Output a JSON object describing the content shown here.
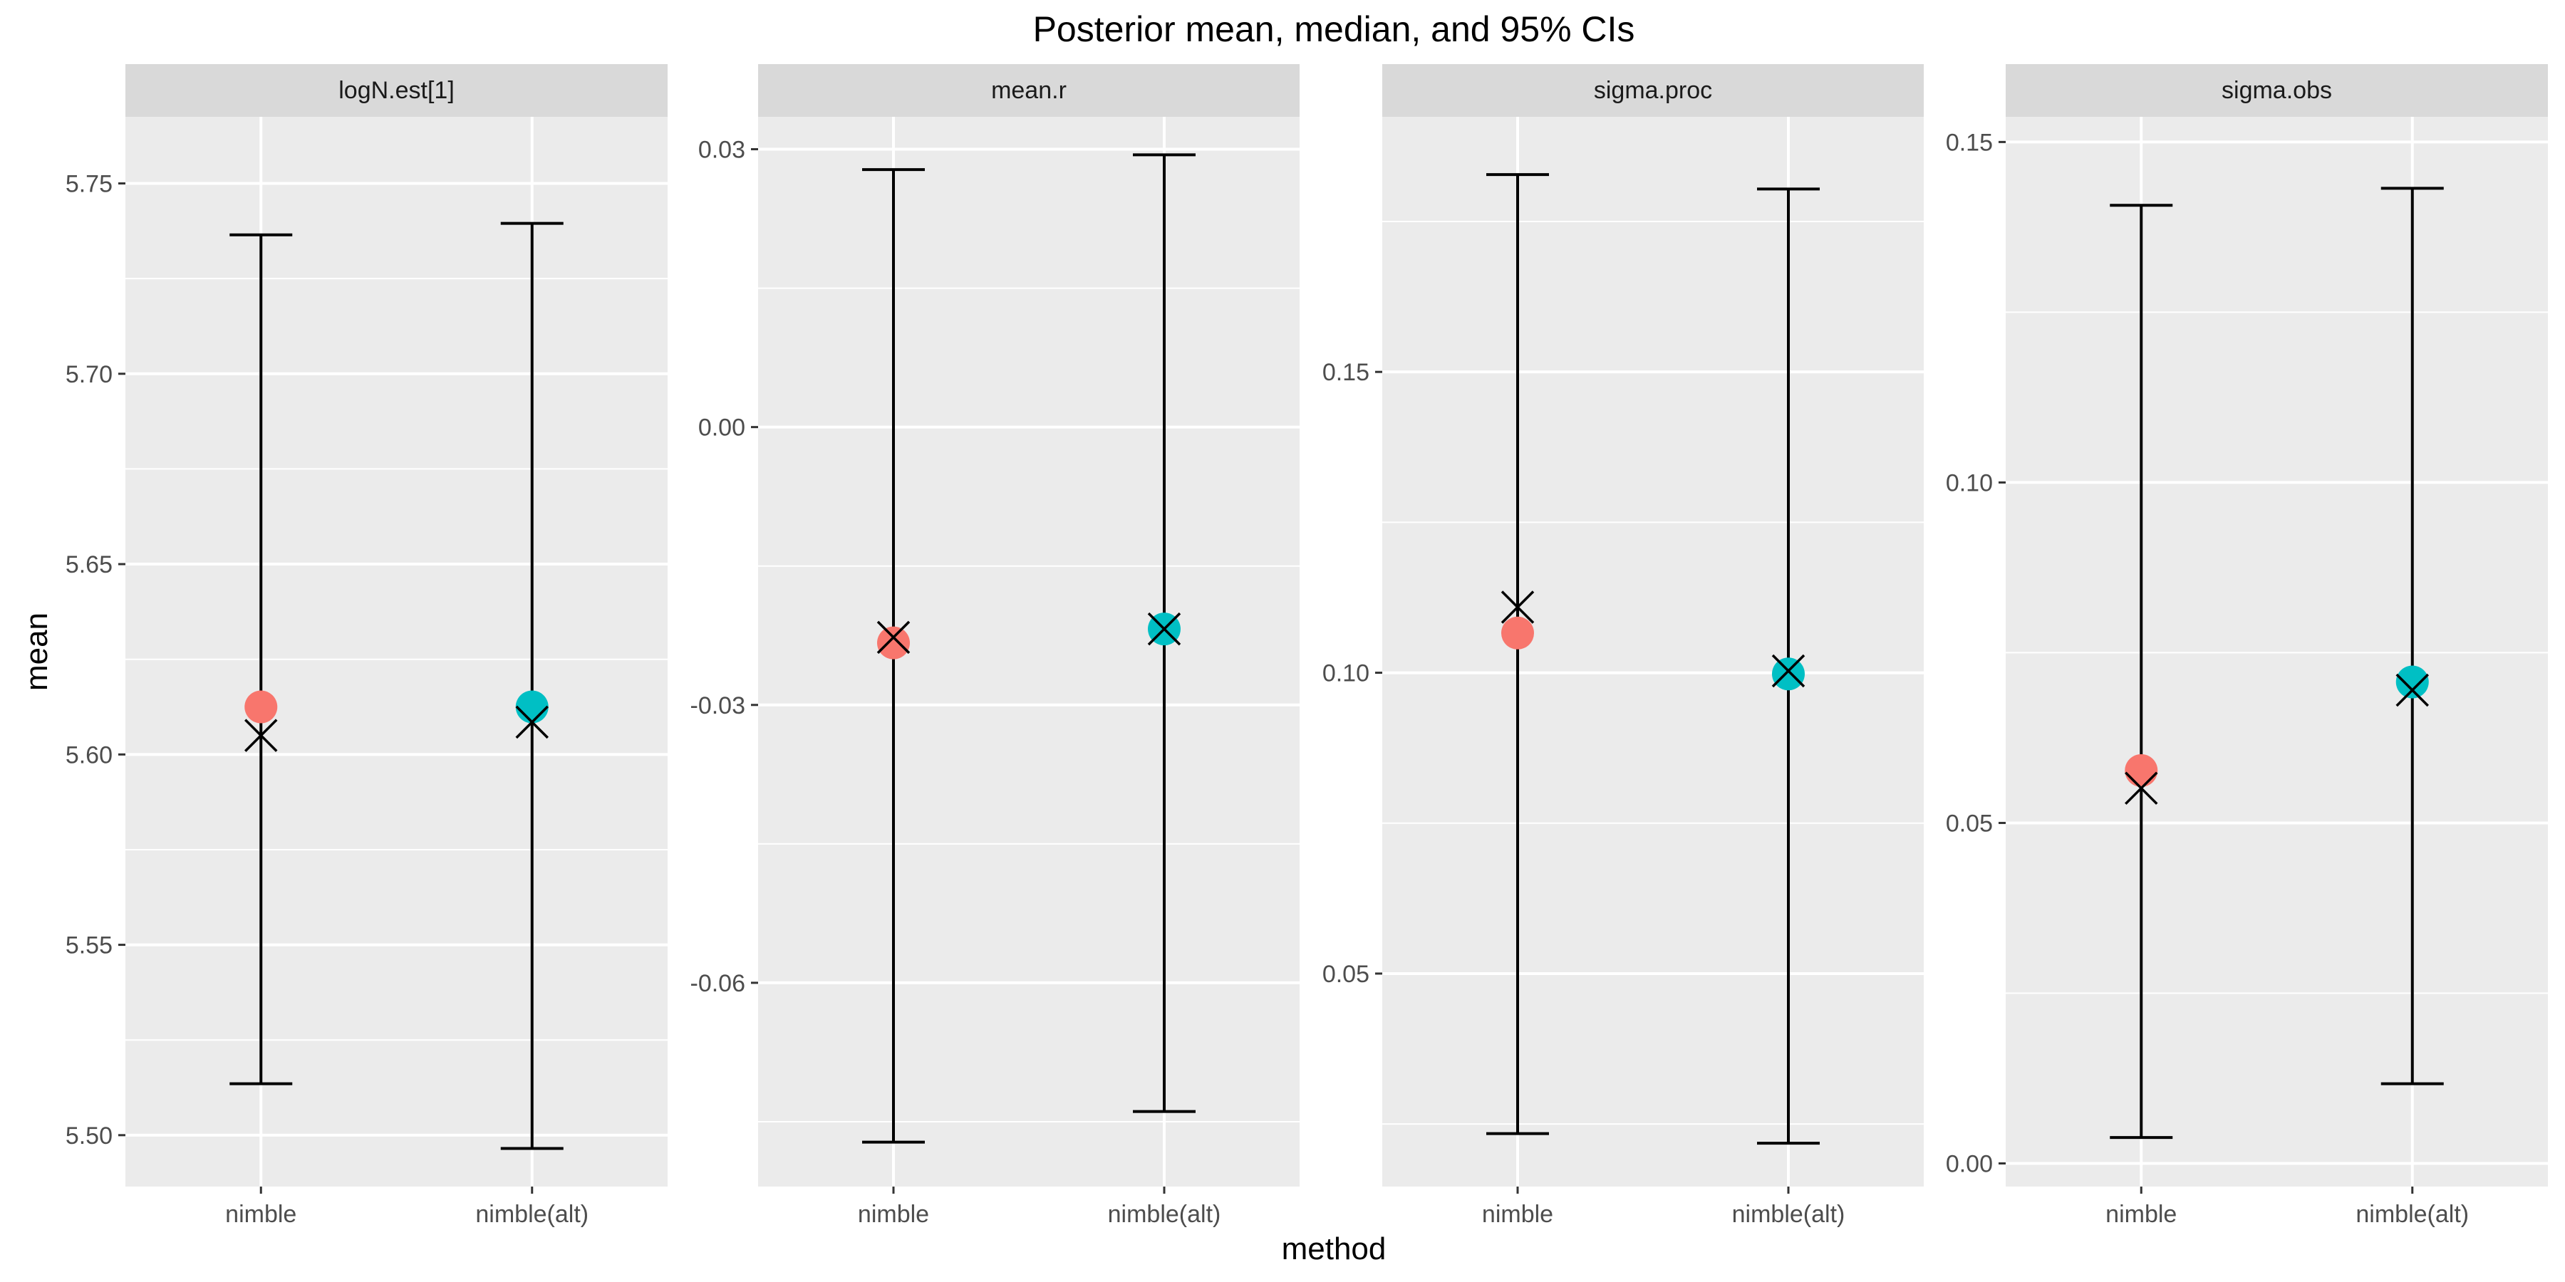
{
  "chart_data": {
    "type": "errorbar",
    "title": "Posterior mean, median, and 95% CIs",
    "xlabel": "method",
    "ylabel": "mean",
    "categories": [
      "nimble",
      "nimble(alt)"
    ],
    "colors": {
      "nimble": "#F8766D",
      "nimble(alt)": "#00BFC4",
      "panel_bg": "#EBEBEB",
      "strip_bg": "#D9D9D9"
    },
    "median_marker": "x-mark",
    "grid": true,
    "legend": "none",
    "facets": [
      {
        "label": "logN.est[1]",
        "ylim": [
          5.4865,
          5.7675
        ],
        "yticks": [
          5.5,
          5.55,
          5.6,
          5.65,
          5.7,
          5.75
        ],
        "ytick_labels": [
          "5.50",
          "5.55",
          "5.60",
          "5.65",
          "5.70",
          "5.75"
        ],
        "points": [
          {
            "method": "nimble",
            "mean": 5.6125,
            "median": 5.605,
            "lower": 5.5135,
            "upper": 5.7365
          },
          {
            "method": "nimble(alt)",
            "mean": 5.6125,
            "median": 5.6085,
            "lower": 5.4965,
            "upper": 5.7395
          }
        ]
      },
      {
        "label": "mean.r",
        "ylim": [
          -0.082,
          0.0335
        ],
        "yticks": [
          -0.06,
          -0.03,
          0.0,
          0.03
        ],
        "ytick_labels": [
          "-0.06",
          "-0.03",
          "0.00",
          "0.03"
        ],
        "points": [
          {
            "method": "nimble",
            "mean": -0.0233,
            "median": -0.0227,
            "lower": -0.0772,
            "upper": 0.0278
          },
          {
            "method": "nimble(alt)",
            "mean": -0.0218,
            "median": -0.0218,
            "lower": -0.0739,
            "upper": 0.0294
          }
        ]
      },
      {
        "label": "sigma.proc",
        "ylim": [
          0.0146,
          0.1924
        ],
        "yticks": [
          0.05,
          0.1,
          0.15
        ],
        "ytick_labels": [
          "0.05",
          "0.10",
          "0.15"
        ],
        "points": [
          {
            "method": "nimble",
            "mean": 0.1066,
            "median": 0.1109,
            "lower": 0.0234,
            "upper": 0.1828
          },
          {
            "method": "nimble(alt)",
            "mean": 0.0998,
            "median": 0.1003,
            "lower": 0.0218,
            "upper": 0.1804
          }
        ]
      },
      {
        "label": "sigma.obs",
        "ylim": [
          -0.0034,
          0.1537
        ],
        "yticks": [
          0.0,
          0.05,
          0.1,
          0.15
        ],
        "ytick_labels": [
          "0.00",
          "0.05",
          "0.10",
          "0.15"
        ],
        "points": [
          {
            "method": "nimble",
            "mean": 0.0577,
            "median": 0.0551,
            "lower": 0.0038,
            "upper": 0.1407
          },
          {
            "method": "nimble(alt)",
            "mean": 0.0707,
            "median": 0.0695,
            "lower": 0.0117,
            "upper": 0.1432
          }
        ]
      }
    ]
  }
}
